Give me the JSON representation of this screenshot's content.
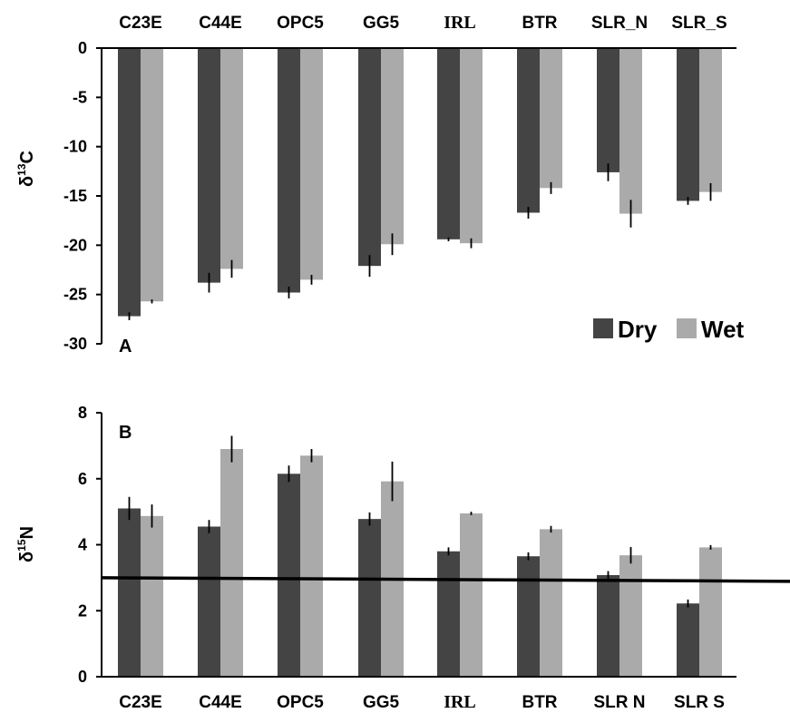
{
  "chart_data": [
    {
      "type": "bar",
      "panel_label": "A",
      "categories": [
        "C23E",
        "C44E",
        "OPC5",
        "GG5",
        "IRL",
        "BTR",
        "SLR_N",
        "SLR_S"
      ],
      "category_label_position": "top",
      "ylabel": "δ13C",
      "ylabel_parts": {
        "main": "δ",
        "sup": "13",
        "after": "C"
      },
      "ylim": [
        -30,
        0
      ],
      "yticks": [
        0,
        -5,
        -10,
        -15,
        -20,
        -25,
        -30
      ],
      "grid": false,
      "legend": {
        "position": "bottom-right"
      },
      "series": [
        {
          "name": "Dry",
          "color": "#444444",
          "values": [
            -27.2,
            -23.8,
            -24.8,
            -22.1,
            -19.4,
            -16.7,
            -12.6,
            -15.5
          ],
          "errors": [
            0.4,
            1.0,
            0.6,
            1.1,
            0.2,
            0.6,
            0.9,
            0.4
          ]
        },
        {
          "name": "Wet",
          "color": "#aaaaaa",
          "values": [
            -25.7,
            -22.4,
            -23.5,
            -19.9,
            -19.8,
            -14.2,
            -16.8,
            -14.6
          ],
          "errors": [
            0.2,
            0.9,
            0.5,
            1.1,
            0.5,
            0.6,
            1.4,
            0.9
          ]
        }
      ]
    },
    {
      "type": "bar",
      "panel_label": "B",
      "categories": [
        "C23E",
        "C44E",
        "OPC5",
        "GG5",
        "IRL",
        "BTR",
        "SLR  N",
        "SLR  S"
      ],
      "category_label_position": "bottom",
      "ylabel": "δ15N",
      "ylabel_parts": {
        "main": "δ",
        "sup": "15",
        "after": "N"
      },
      "ylim": [
        0,
        8
      ],
      "yticks": [
        0,
        2,
        4,
        6,
        8
      ],
      "grid": false,
      "reference_line": 3,
      "series": [
        {
          "name": "Dry",
          "color": "#444444",
          "values": [
            5.1,
            4.55,
            6.15,
            4.78,
            3.8,
            3.65,
            3.08,
            2.22
          ],
          "errors": [
            0.35,
            0.2,
            0.25,
            0.2,
            0.12,
            0.12,
            0.12,
            0.12
          ]
        },
        {
          "name": "Wet",
          "color": "#aaaaaa",
          "values": [
            4.87,
            6.9,
            6.7,
            5.92,
            4.95,
            4.47,
            3.68,
            3.92
          ],
          "errors": [
            0.35,
            0.4,
            0.2,
            0.6,
            0.05,
            0.1,
            0.25,
            0.07
          ]
        }
      ]
    }
  ]
}
